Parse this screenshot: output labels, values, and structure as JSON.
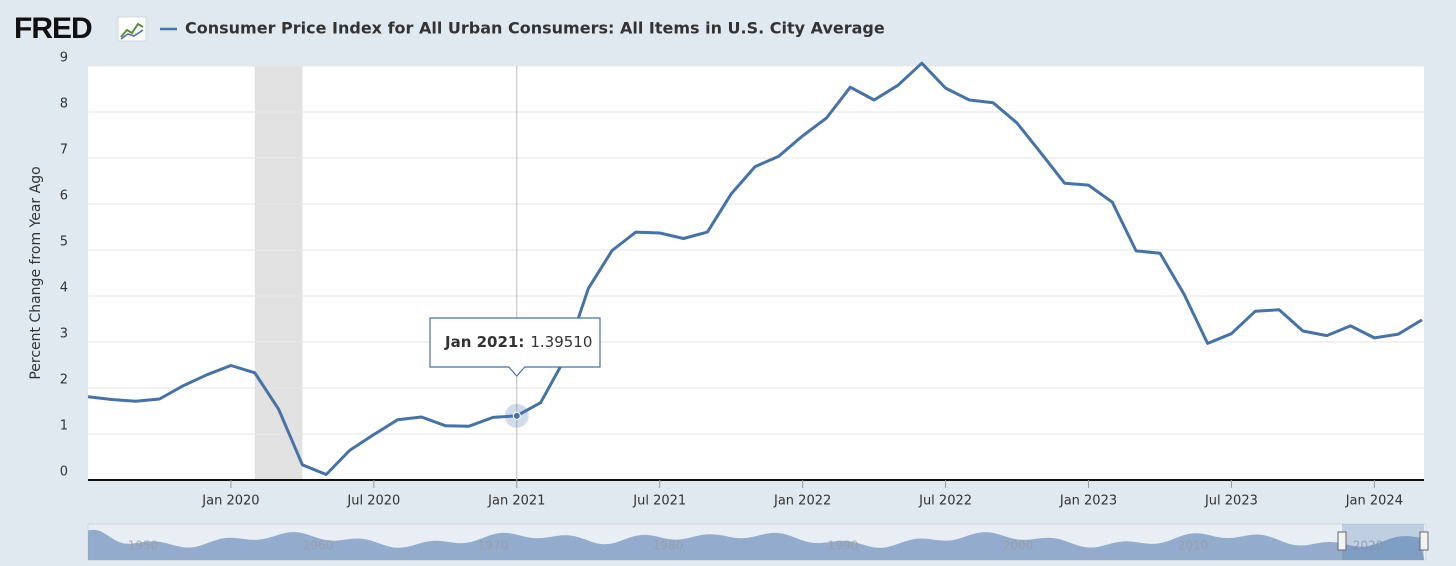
{
  "chart_data": {
    "type": "line",
    "logo": "FRED",
    "title": "Consumer Price Index for All Urban Consumers: All Items in U.S. City Average",
    "y_label": "Percent Change from Year Ago",
    "x": [
      "Jul 2019",
      "Aug 2019",
      "Sep 2019",
      "Oct 2019",
      "Nov 2019",
      "Dec 2019",
      "Jan 2020",
      "Feb 2020",
      "Mar 2020",
      "Apr 2020",
      "May 2020",
      "Jun 2020",
      "Jul 2020",
      "Aug 2020",
      "Sep 2020",
      "Oct 2020",
      "Nov 2020",
      "Dec 2020",
      "Jan 2021",
      "Feb 2021",
      "Mar 2021",
      "Apr 2021",
      "May 2021",
      "Jun 2021",
      "Jul 2021",
      "Aug 2021",
      "Sep 2021",
      "Oct 2021",
      "Nov 2021",
      "Dec 2021",
      "Jan 2022",
      "Feb 2022",
      "Mar 2022",
      "Apr 2022",
      "May 2022",
      "Jun 2022",
      "Jul 2022",
      "Aug 2022",
      "Sep 2022",
      "Oct 2022",
      "Nov 2022",
      "Dec 2022",
      "Jan 2023",
      "Feb 2023",
      "Mar 2023",
      "Apr 2023",
      "May 2023",
      "Jun 2023",
      "Jul 2023",
      "Aug 2023",
      "Sep 2023",
      "Oct 2023",
      "Nov 2023",
      "Dec 2023",
      "Jan 2024",
      "Feb 2024",
      "Mar 2024"
    ],
    "series": [
      {
        "name": "Consumer Price Index for All Urban Consumers: All Items in U.S. City Average",
        "color": "#4572a7",
        "values": [
          1.81,
          1.75,
          1.71,
          1.76,
          2.05,
          2.29,
          2.49,
          2.33,
          1.54,
          0.33,
          0.12,
          0.65,
          0.99,
          1.31,
          1.37,
          1.18,
          1.17,
          1.36,
          1.3951,
          1.68,
          2.62,
          4.16,
          4.99,
          5.39,
          5.37,
          5.25,
          5.39,
          6.22,
          6.81,
          7.04,
          7.48,
          7.87,
          8.54,
          8.26,
          8.58,
          9.06,
          8.52,
          8.26,
          8.2,
          7.76,
          7.11,
          6.45,
          6.41,
          6.04,
          4.98,
          4.93,
          4.05,
          2.97,
          3.18,
          3.67,
          3.7,
          3.24,
          3.14,
          3.35,
          3.09,
          3.17,
          3.48
        ]
      }
    ],
    "xticks": [
      "Jan 2020",
      "Jul 2020",
      "Jan 2021",
      "Jul 2021",
      "Jan 2022",
      "Jul 2022",
      "Jan 2023",
      "Jul 2023",
      "Jan 2024"
    ],
    "ylim": [
      0,
      9
    ],
    "yticks": [
      0,
      1,
      2,
      3,
      4,
      5,
      6,
      7,
      8,
      9
    ],
    "grid": true,
    "recessions": [
      {
        "start": "Feb 2020",
        "end": "Apr 2020"
      }
    ],
    "tooltip": {
      "x": "Jan 2021",
      "label": "Jan 2021:",
      "value": 1.3951,
      "value_label": "1.39510"
    },
    "navigator": {
      "labels": [
        "1950",
        "1960",
        "1970",
        "1980",
        "1990",
        "2000",
        "2010",
        "2020"
      ]
    }
  }
}
